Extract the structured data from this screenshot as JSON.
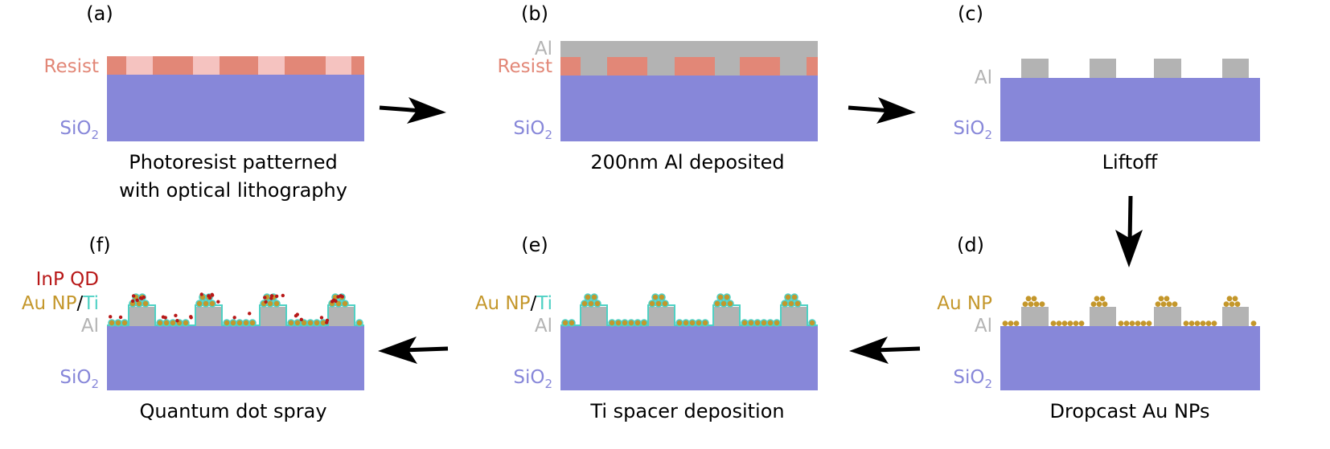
{
  "colors": {
    "sio2": "#8787d9",
    "resist": "#e28777",
    "resist_light": "#f5c3c0",
    "al": "#b3b3b3",
    "au": "#c4972b",
    "ti": "#4fd1c4",
    "qd": "#b81818",
    "text": "#000000"
  },
  "layer_labels": {
    "resist": "Resist",
    "al": "Al",
    "sio2_main": "SiO",
    "sio2_sub": "2",
    "au_np": "Au NP",
    "slash": "/",
    "ti": "Ti",
    "inp_qd": "InP QD"
  },
  "panels": {
    "a": {
      "letter": "(a)",
      "caption_line1": "Photoresist patterned",
      "caption_line2": "with optical lithography"
    },
    "b": {
      "letter": "(b)",
      "caption": "200nm Al deposited"
    },
    "c": {
      "letter": "(c)",
      "caption": "Liftoff"
    },
    "d": {
      "letter": "(d)",
      "caption": "Dropcast Au NPs"
    },
    "e": {
      "letter": "(e)",
      "caption": "Ti spacer deposition"
    },
    "f": {
      "letter": "(f)",
      "caption": "Quantum dot spray"
    }
  },
  "arrows": [
    {
      "name": "arrow-a-to-b",
      "direction": "right"
    },
    {
      "name": "arrow-b-to-c",
      "direction": "right"
    },
    {
      "name": "arrow-c-to-d",
      "direction": "down"
    },
    {
      "name": "arrow-d-to-e",
      "direction": "left"
    },
    {
      "name": "arrow-e-to-f",
      "direction": "left"
    }
  ]
}
